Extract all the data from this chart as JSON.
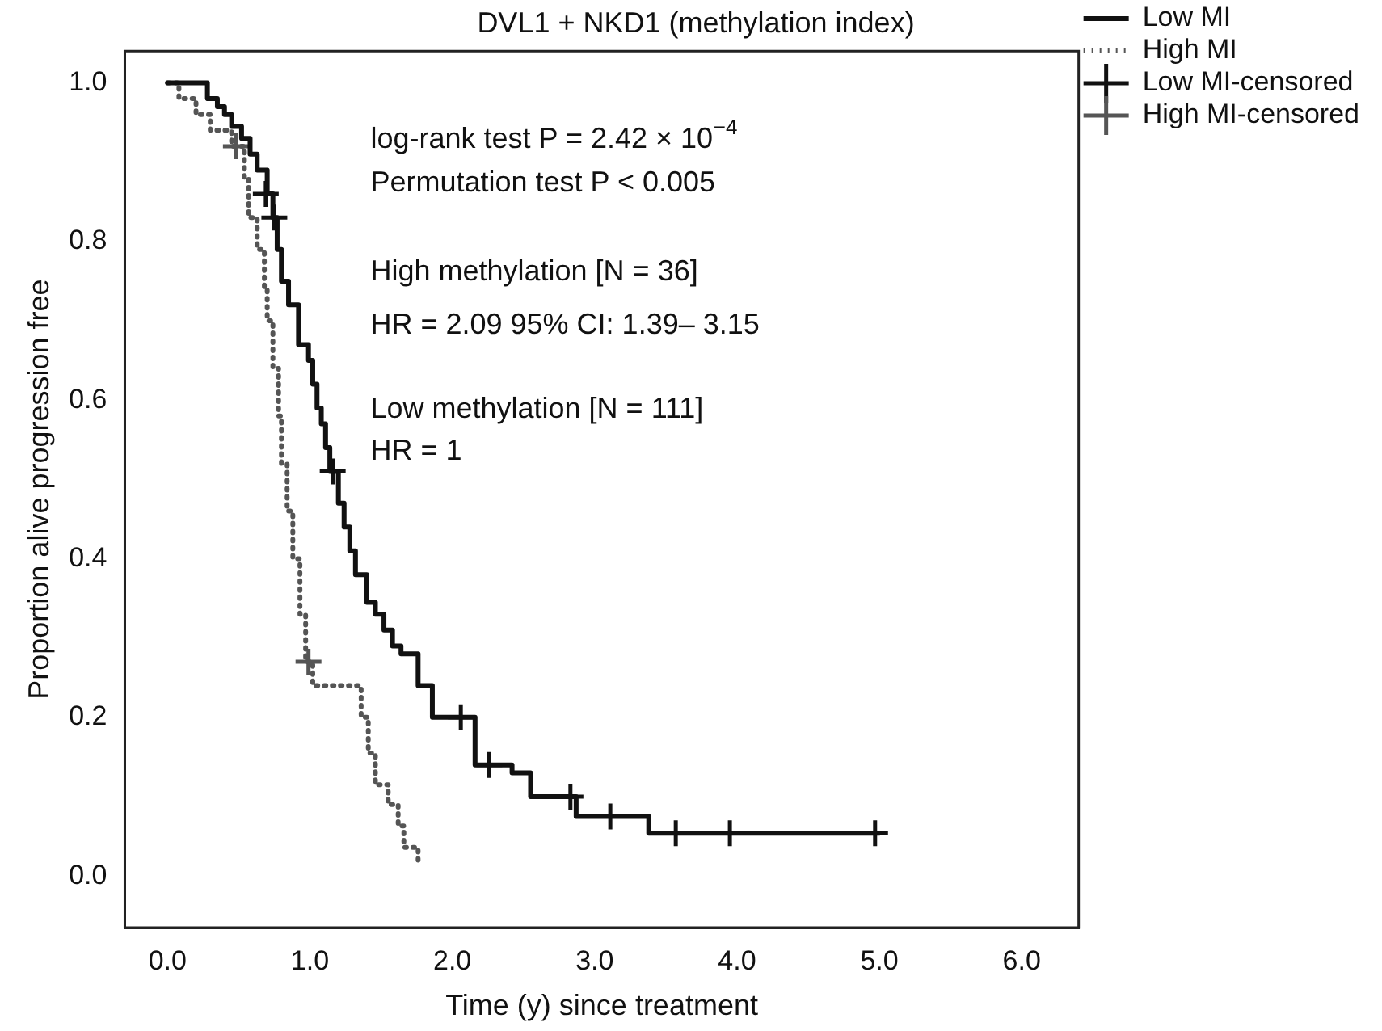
{
  "chart_data": {
    "type": "step",
    "title": "DVL1 + NKD1 (methylation index)",
    "xlabel": "Time (y) since treatment",
    "ylabel": "Proportion alive progression free",
    "xlim": [
      -0.3,
      6.4
    ],
    "ylim": [
      -0.065,
      1.04
    ],
    "xticks": [
      {
        "value": 0,
        "label": "0.0"
      },
      {
        "value": 1,
        "label": "1.0"
      },
      {
        "value": 2,
        "label": "2.0"
      },
      {
        "value": 3,
        "label": "3.0"
      },
      {
        "value": 4,
        "label": "4.0"
      },
      {
        "value": 5,
        "label": "5.0"
      },
      {
        "value": 6,
        "label": "6.0"
      }
    ],
    "yticks": [
      {
        "value": 0,
        "label": "0.0"
      },
      0.2,
      0.4,
      0.6,
      0.8,
      {
        "value": 1,
        "label": "1.0"
      }
    ],
    "grid": false,
    "legend": "top right",
    "series": [
      {
        "name": "Low MI",
        "color": "#111111",
        "line_style": "solid",
        "marker": "none",
        "x": [
          0,
          0.28,
          0.35,
          0.4,
          0.45,
          0.52,
          0.58,
          0.63,
          0.7,
          0.74,
          0.77,
          0.8,
          0.85,
          0.92,
          0.99,
          1.02,
          1.05,
          1.08,
          1.11,
          1.14,
          1.2,
          1.24,
          1.28,
          1.32,
          1.4,
          1.46,
          1.52,
          1.58,
          1.64,
          1.76,
          1.86,
          2.16,
          2.42,
          2.55,
          2.87,
          3.38,
          5.0
        ],
        "values": [
          1.0,
          0.98,
          0.97,
          0.96,
          0.945,
          0.93,
          0.91,
          0.89,
          0.86,
          0.83,
          0.79,
          0.75,
          0.72,
          0.67,
          0.65,
          0.62,
          0.59,
          0.57,
          0.54,
          0.51,
          0.47,
          0.44,
          0.41,
          0.38,
          0.345,
          0.33,
          0.31,
          0.29,
          0.28,
          0.24,
          0.2,
          0.14,
          0.13,
          0.1,
          0.075,
          0.054,
          0.054
        ]
      },
      {
        "name": "High MI",
        "color": "#555555",
        "line_style": "dotted",
        "marker": "none",
        "x": [
          0,
          0.08,
          0.2,
          0.3,
          0.45,
          0.54,
          0.57,
          0.63,
          0.68,
          0.7,
          0.74,
          0.78,
          0.8,
          0.84,
          0.88,
          0.93,
          0.97,
          1.02,
          1.3,
          1.36,
          1.41,
          1.46,
          1.55,
          1.62,
          1.66,
          1.76
        ],
        "values": [
          1.0,
          0.98,
          0.96,
          0.94,
          0.92,
          0.88,
          0.83,
          0.79,
          0.74,
          0.7,
          0.64,
          0.58,
          0.52,
          0.46,
          0.4,
          0.33,
          0.27,
          0.24,
          0.24,
          0.2,
          0.155,
          0.115,
          0.09,
          0.063,
          0.036,
          0.014
        ]
      },
      {
        "name": "Low MI-censored",
        "type": "scatter",
        "color": "#111111",
        "marker": "cross",
        "x": [
          0.69,
          0.75,
          1.16,
          2.06,
          2.26,
          2.83,
          3.11,
          3.57,
          3.95,
          4.97
        ],
        "values": [
          0.86,
          0.83,
          0.51,
          0.2,
          0.14,
          0.1,
          0.075,
          0.054,
          0.054,
          0.054
        ]
      },
      {
        "name": "High MI-censored",
        "type": "scatter",
        "color": "#555555",
        "marker": "cross",
        "x": [
          0.48,
          0.99
        ],
        "values": [
          0.92,
          0.27
        ]
      }
    ],
    "annotations": [
      "log-rank test P = 2.42 × 10$^{−4}$",
      "Permutation test P < 0.005",
      "High methylation [N = 36]",
      "HR = 2.09 95% CI: 1.39– 3.15",
      "Low methylation [N = 111]",
      "HR = 1"
    ]
  }
}
